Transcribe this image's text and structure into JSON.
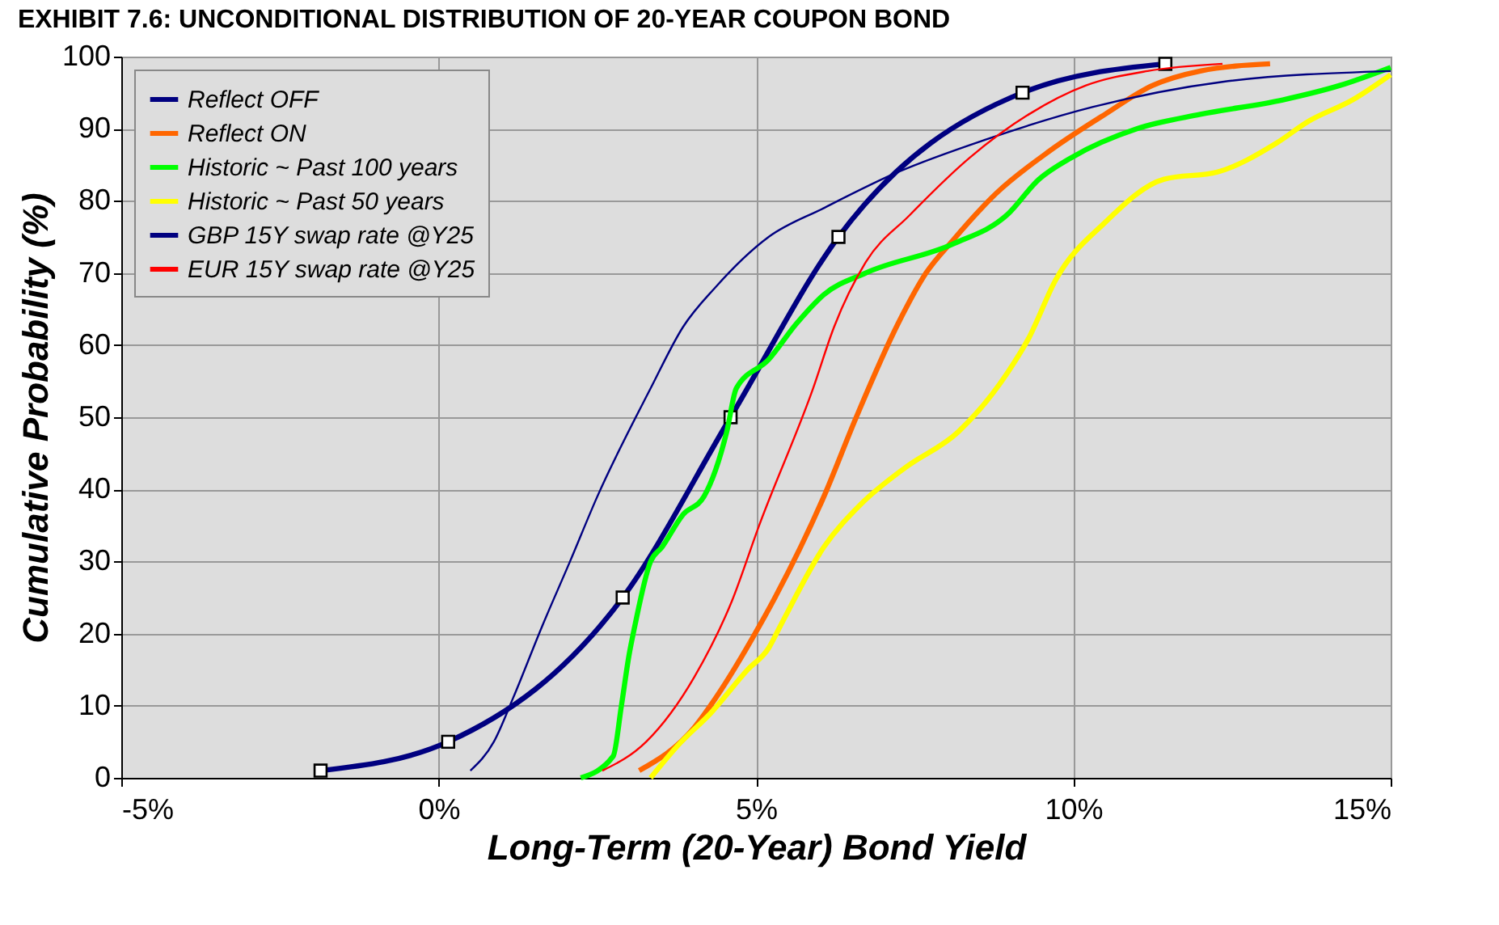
{
  "chart_data": {
    "type": "line",
    "title": "EXHIBIT 7.6: UNCONDITIONAL DISTRIBUTION OF 20-YEAR COUPON BOND",
    "xlabel": "Long-Term (20-Year) Bond Yield",
    "ylabel": "Cumulative Probability (%)",
    "xlim": [
      -5,
      15
    ],
    "xticks": [
      {
        "value": -5,
        "label": "-5%"
      },
      {
        "value": 0,
        "label": "0%"
      },
      {
        "value": 5,
        "label": "5%"
      },
      {
        "value": 10,
        "label": "10%"
      },
      {
        "value": 15,
        "label": "15%"
      }
    ],
    "ylim": [
      0,
      100
    ],
    "yticks": [
      0,
      10,
      20,
      30,
      40,
      50,
      60,
      70,
      80,
      90,
      100
    ],
    "grid": true,
    "legend": "top left",
    "series": [
      {
        "name": "Reflect OFF",
        "color": "#000080",
        "marker": "square",
        "x": [
          -1.86,
          0.15,
          2.9,
          4.6,
          6.3,
          9.2,
          11.45
        ],
        "values": [
          1,
          5,
          25,
          50,
          75,
          95,
          99
        ]
      },
      {
        "name": "Reflect ON",
        "color": "#ff6600",
        "marker": "none",
        "x": [
          3.16,
          4.03,
          4.36,
          5.05,
          5.3,
          6.07,
          6.58,
          7.24,
          7.68,
          8.1,
          8.78,
          9.64,
          10.5,
          11.25,
          12.0,
          13.1
        ],
        "values": [
          1,
          7,
          11,
          21,
          25,
          39,
          50,
          63,
          70,
          74.5,
          81,
          87,
          92,
          96,
          98,
          99
        ]
      },
      {
        "name": "Historic ~ Past 100 years",
        "color": "#00ff00",
        "marker": "none",
        "x": [
          2.24,
          2.75,
          2.88,
          3.0,
          3.09,
          3.34,
          3.52,
          3.85,
          4.18,
          4.54,
          4.69,
          5.2,
          5.64,
          6.07,
          6.73,
          8.1,
          8.95,
          9.46,
          9.97,
          11.0,
          12.0,
          13.3,
          14.2,
          15
        ],
        "values": [
          0,
          3,
          10,
          17,
          21,
          30,
          32,
          36.5,
          39,
          48,
          54,
          58,
          63,
          67,
          70,
          74,
          78,
          83,
          86,
          90,
          92,
          94,
          96,
          98.5
        ]
      },
      {
        "name": "Historic ~ Past 50 years",
        "color": "#ffff00",
        "marker": "none",
        "x": [
          3.34,
          3.77,
          4.29,
          4.87,
          5.2,
          5.38,
          6.07,
          6.66,
          7.35,
          8.19,
          8.95,
          9.3,
          9.72,
          10.5,
          11.43,
          12.27,
          13.2,
          13.7,
          14.4,
          15
        ],
        "values": [
          0,
          4.5,
          9,
          15,
          18,
          21,
          32,
          38,
          43,
          48,
          56,
          61,
          69,
          77,
          83,
          84,
          88,
          91,
          94,
          97.5
        ]
      },
      {
        "name": "GBP 15Y swap rate @Y25",
        "color": "#000080",
        "marker": "none",
        "x": [
          0.5,
          0.87,
          1.17,
          1.63,
          2.07,
          2.5,
          3.34,
          3.85,
          4.36,
          5.2,
          6.07,
          7.24,
          8.62,
          10.3,
          12.35,
          15
        ],
        "values": [
          1,
          5,
          11,
          21,
          30,
          39,
          54,
          62.5,
          68,
          75,
          79,
          84,
          88.5,
          93,
          96.5,
          98
        ]
      },
      {
        "name": "EUR 15Y swap rate @Y25",
        "color": "#ff0000",
        "marker": "none",
        "x": [
          2.58,
          3.27,
          4.03,
          4.62,
          5.05,
          5.9,
          6.23,
          6.73,
          7.42,
          8.37,
          9.3,
          10.2,
          11.17,
          12.35
        ],
        "values": [
          1,
          5,
          14,
          24.5,
          35,
          54,
          62.5,
          71.5,
          78,
          86,
          92,
          96,
          98,
          99
        ]
      }
    ]
  }
}
